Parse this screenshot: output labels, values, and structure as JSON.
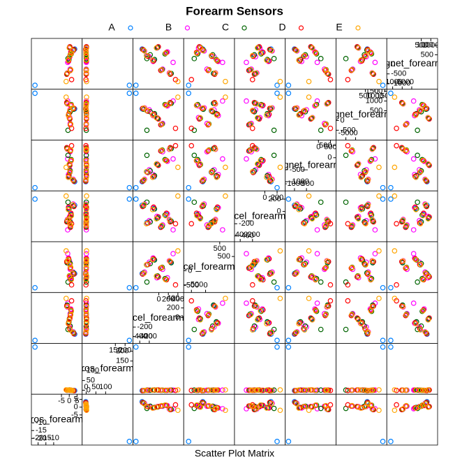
{
  "chart_data": {
    "type": "splom",
    "title": "Forearm Sensors",
    "xlabel": "Scatter Plot Matrix",
    "variables": [
      "gyros_forearm_x",
      "gyros_forearm_y",
      "accel_forearm_x",
      "accel_forearm_y",
      "accel_forearm_z",
      "magnet_forearm_x",
      "magnet_forearm_y",
      "magnet_forearm_z"
    ],
    "limits": [
      [
        -23,
        7
      ],
      [
        -10,
        230
      ],
      [
        -500,
        480
      ],
      [
        -700,
        950
      ],
      [
        -460,
        300
      ],
      [
        -1300,
        650
      ],
      [
        -900,
        1500
      ],
      [
        -1200,
        1250
      ]
    ],
    "ticks": [
      [
        -20,
        -15,
        -10,
        -5,
        0,
        5
      ],
      [
        0,
        50,
        100,
        150,
        200
      ],
      [
        -400,
        -200,
        0,
        200,
        400
      ],
      [
        -500,
        0,
        500
      ],
      [
        -400,
        -200,
        0,
        200
      ],
      [
        -1000,
        -500,
        0,
        500
      ],
      [
        -500,
        0,
        500,
        1000,
        1500
      ],
      [
        -1000,
        -500,
        0,
        500,
        1000
      ]
    ],
    "series": [
      {
        "name": "A",
        "color": "#0080ff",
        "values": [
          [
            0.5,
            0.3,
            -250,
            200,
            -180,
            -600,
            500,
            450
          ],
          [
            1.2,
            -0.5,
            150,
            -300,
            -50,
            -100,
            800,
            600
          ],
          [
            -0.3,
            1.0,
            -100,
            400,
            50,
            -800,
            300,
            200
          ],
          [
            0.8,
            0.2,
            50,
            100,
            -250,
            300,
            -200,
            -300
          ],
          [
            3.5,
            -2.0,
            -350,
            -100,
            100,
            -1000,
            600,
            800
          ],
          [
            -1.5,
            0.5,
            250,
            300,
            -150,
            400,
            900,
            -500
          ],
          [
            0.2,
            1.5,
            -20,
            -200,
            -100,
            -300,
            100,
            900
          ],
          [
            -22,
            222,
            -480,
            -600,
            200,
            -1250,
            1400,
            -1100
          ]
        ]
      },
      {
        "name": "B",
        "color": "#ff00ff",
        "values": [
          [
            0.4,
            0.1,
            -200,
            300,
            -150,
            -500,
            550,
            400
          ],
          [
            1.0,
            -0.3,
            180,
            -250,
            -40,
            -150,
            750,
            650
          ],
          [
            -0.5,
            0.8,
            -120,
            450,
            60,
            -700,
            250,
            150
          ],
          [
            0.6,
            0.4,
            80,
            50,
            -220,
            250,
            -150,
            -250
          ],
          [
            2.5,
            -1.5,
            -300,
            -50,
            120,
            -900,
            650,
            700
          ],
          [
            -1.2,
            0.6,
            220,
            350,
            -130,
            350,
            850,
            -450
          ],
          [
            0.3,
            1.2,
            -40,
            -250,
            -80,
            -250,
            150,
            850
          ],
          [
            -1.0,
            0.9,
            300,
            600,
            -300,
            -50,
            1000,
            100
          ]
        ]
      },
      {
        "name": "C",
        "color": "#006400",
        "values": [
          [
            0.6,
            0.2,
            -180,
            250,
            -170,
            -550,
            450,
            500
          ],
          [
            1.3,
            -0.4,
            130,
            -280,
            -60,
            -80,
            820,
            550
          ],
          [
            -0.2,
            0.9,
            -90,
            380,
            40,
            -750,
            350,
            250
          ],
          [
            0.9,
            0.3,
            70,
            120,
            -240,
            320,
            -180,
            -280
          ],
          [
            2.8,
            -1.8,
            -320,
            -80,
            90,
            -950,
            580,
            750
          ],
          [
            -1.4,
            0.4,
            260,
            280,
            -160,
            380,
            880,
            -480
          ],
          [
            0.1,
            1.3,
            -30,
            -180,
            -110,
            -280,
            120,
            880
          ],
          [
            -0.8,
            0.7,
            -250,
            -400,
            150,
            100,
            -500,
            300
          ]
        ]
      },
      {
        "name": "D",
        "color": "#ff0000",
        "values": [
          [
            0.3,
            0.4,
            -230,
            220,
            -190,
            -620,
            480,
            420
          ],
          [
            1.1,
            -0.6,
            160,
            -320,
            -30,
            -120,
            780,
            620
          ],
          [
            -0.4,
            1.1,
            -110,
            420,
            70,
            -780,
            320,
            180
          ],
          [
            0.7,
            0.1,
            40,
            90,
            -260,
            280,
            -220,
            -320
          ],
          [
            3.0,
            -2.2,
            -340,
            -120,
            80,
            -980,
            620,
            780
          ],
          [
            -1.6,
            0.3,
            240,
            320,
            -170,
            420,
            920,
            -520
          ],
          [
            0.4,
            1.4,
            -10,
            -220,
            -90,
            -320,
            80,
            920
          ],
          [
            1.5,
            -1.0,
            350,
            -500,
            -200,
            500,
            -400,
            -800
          ]
        ]
      },
      {
        "name": "E",
        "color": "#ffa500",
        "values": [
          [
            0.5,
            0.2,
            -260,
            210,
            -200,
            -580,
            520,
            460
          ],
          [
            1.4,
            -0.2,
            140,
            -310,
            -70,
            -110,
            790,
            580
          ],
          [
            -0.6,
            0.7,
            -130,
            390,
            30,
            -820,
            280,
            220
          ],
          [
            1.0,
            0.3,
            60,
            110,
            -230,
            310,
            -190,
            -290
          ],
          [
            2.2,
            -1.2,
            -310,
            -90,
            110,
            -920,
            640,
            720
          ],
          [
            -1.1,
            0.5,
            230,
            340,
            -140,
            360,
            860,
            -460
          ],
          [
            0.0,
            1.6,
            -50,
            -190,
            -120,
            -260,
            140,
            860
          ],
          [
            -2.0,
            2.0,
            400,
            700,
            250,
            -400,
            1200,
            -900
          ]
        ]
      }
    ]
  }
}
